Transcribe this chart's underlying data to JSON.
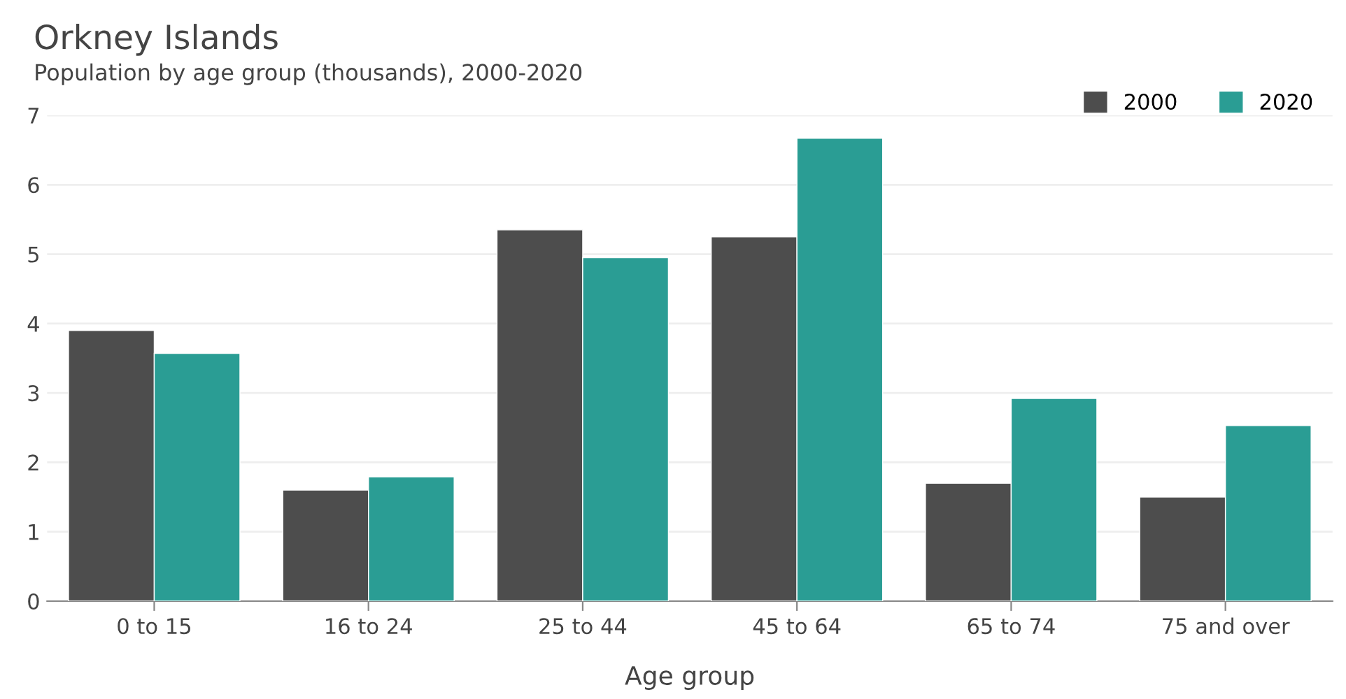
{
  "chart_data": {
    "type": "bar",
    "title": "Orkney Islands",
    "subtitle": "Population by age group (thousands), 2000-2020",
    "xlabel": "Age group",
    "categories": [
      "0 to 15",
      "16 to 24",
      "25 to 44",
      "45 to 64",
      "65 to 74",
      "75 and over"
    ],
    "series": [
      {
        "name": "2000",
        "color": "#4d4d4d",
        "values": [
          3.9,
          1.6,
          5.35,
          5.25,
          1.7,
          1.5
        ]
      },
      {
        "name": "2020",
        "color": "#2a9d94",
        "values": [
          3.57,
          1.79,
          4.95,
          6.67,
          2.92,
          2.53
        ]
      }
    ],
    "ylim": [
      0,
      7
    ],
    "yticks": [
      0,
      1,
      2,
      3,
      4,
      5,
      6,
      7
    ],
    "grid": "y",
    "legend": "top right"
  }
}
